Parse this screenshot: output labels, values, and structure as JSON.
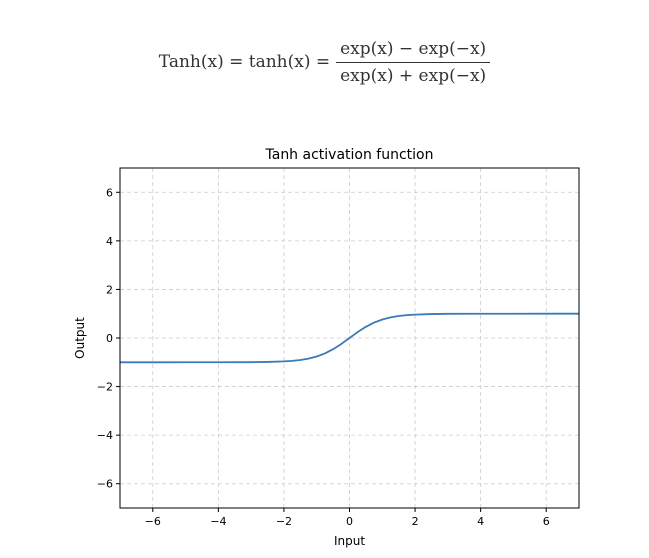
{
  "formula": {
    "lhs": "Tanh(x) = tanh(x) =",
    "numerator": "exp(x) − exp(−x)",
    "denominator": "exp(x) + exp(−x)"
  },
  "chart_data": {
    "type": "line",
    "title": "Tanh activation function",
    "xlabel": "Input",
    "ylabel": "Output",
    "xlim": [
      -7,
      7
    ],
    "ylim": [
      -7,
      7
    ],
    "xticks": [
      -6,
      -4,
      -2,
      0,
      2,
      4,
      6
    ],
    "yticks": [
      -6,
      -4,
      -2,
      0,
      2,
      4,
      6
    ],
    "xtick_labels": [
      "−6",
      "−4",
      "−2",
      "0",
      "2",
      "4",
      "6"
    ],
    "ytick_labels": [
      "−6",
      "−4",
      "−2",
      "0",
      "2",
      "4",
      "6"
    ],
    "grid": true,
    "line_color": "#3a7ab8",
    "grid_color": "#cccccc",
    "series": [
      {
        "function": "tanh",
        "x": [
          -7,
          -6,
          -5,
          -4,
          -3,
          -2.5,
          -2,
          -1.75,
          -1.5,
          -1.25,
          -1,
          -0.75,
          -0.5,
          -0.25,
          0,
          0.25,
          0.5,
          0.75,
          1,
          1.25,
          1.5,
          1.75,
          2,
          2.5,
          3,
          4,
          5,
          6,
          7
        ],
        "y": [
          -1.0,
          -1.0,
          -0.9999,
          -0.9993,
          -0.9951,
          -0.9866,
          -0.964,
          -0.9414,
          -0.9051,
          -0.8483,
          -0.7616,
          -0.6351,
          -0.4621,
          -0.2449,
          0.0,
          0.2449,
          0.4621,
          0.6351,
          0.7616,
          0.8483,
          0.9051,
          0.9414,
          0.964,
          0.9866,
          0.9951,
          0.9993,
          0.9999,
          1.0,
          1.0
        ]
      }
    ]
  }
}
